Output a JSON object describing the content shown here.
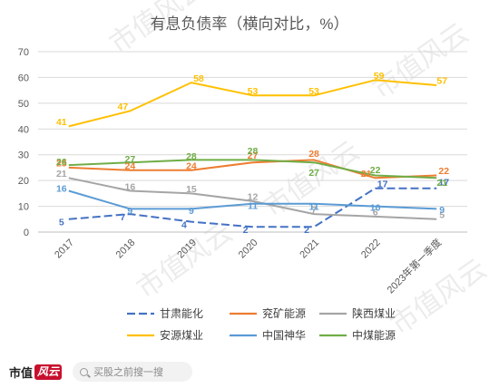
{
  "chart_data": {
    "type": "line",
    "title": "有息负债率（横向对比，%）",
    "categories": [
      "2017",
      "2018",
      "2019",
      "2020",
      "2021",
      "2022",
      "2023年第一季度"
    ],
    "ylim": [
      0,
      70
    ],
    "yticks": [
      0,
      10,
      20,
      30,
      40,
      50,
      60,
      70
    ],
    "grid": true,
    "legend_position": "bottom",
    "series": [
      {
        "name": "甘肃能化",
        "color": "#4472c4",
        "dash": "long-dash",
        "values": [
          5,
          7,
          4,
          2,
          2,
          17,
          17
        ]
      },
      {
        "name": "兖矿能源",
        "color": "#ed7d31",
        "dash": "solid",
        "values": [
          25,
          24,
          24,
          27,
          28,
          21,
          22
        ]
      },
      {
        "name": "陕西煤业",
        "color": "#a5a5a5",
        "dash": "solid",
        "values": [
          21,
          16,
          15,
          12,
          7,
          6,
          5
        ]
      },
      {
        "name": "安源煤业",
        "color": "#ffc000",
        "dash": "solid",
        "values": [
          41,
          47,
          58,
          53,
          53,
          59,
          57
        ]
      },
      {
        "name": "中国神华",
        "color": "#5b9bd5",
        "dash": "solid",
        "values": [
          16,
          9,
          9,
          11,
          11,
          10,
          9
        ]
      },
      {
        "name": "中煤能源",
        "color": "#70ad47",
        "dash": "solid",
        "values": [
          26,
          27,
          28,
          28,
          27,
          22,
          21
        ]
      }
    ]
  },
  "watermark_text": "市值风云",
  "footer": {
    "logo_text": "市值",
    "logo_mark": "风云",
    "search_placeholder": "买股之前搜一搜",
    "search_icon": "search-icon"
  }
}
